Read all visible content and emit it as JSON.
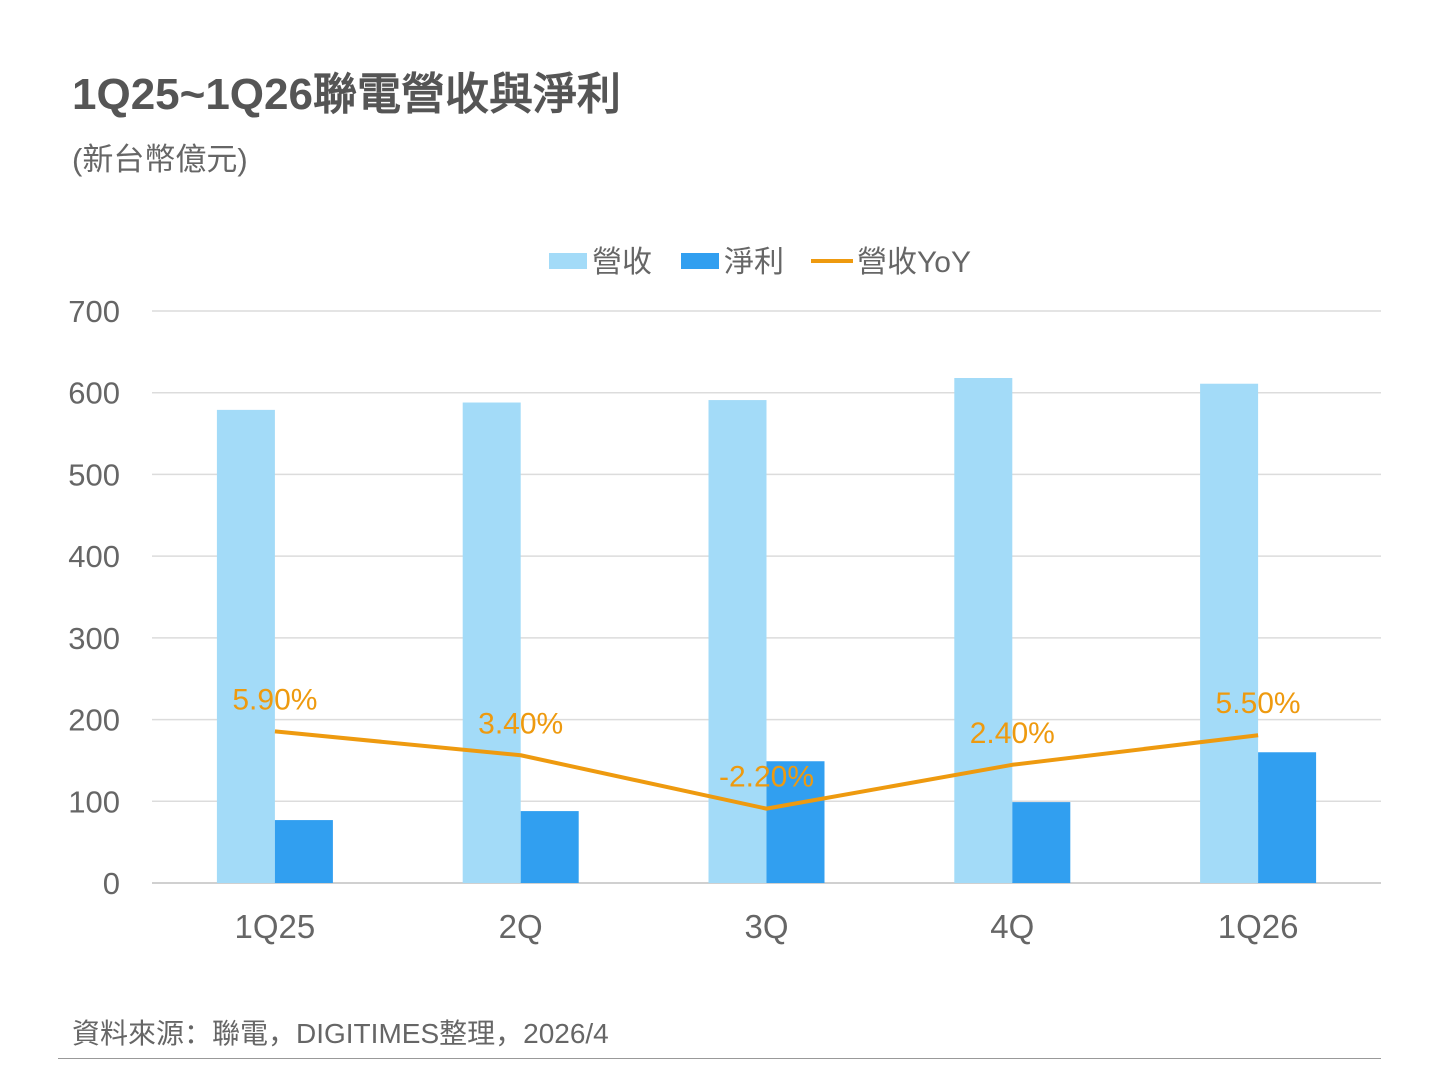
{
  "title": "1Q25~1Q26聯電營收與淨利",
  "subtitle": "(新台幣億元)",
  "source": "資料來源：聯電，DIGITIMES整理，2026/4",
  "chart_data": {
    "type": "bar",
    "title": "1Q25~1Q26聯電營收與淨利",
    "categories": [
      "1Q25",
      "2Q",
      "3Q",
      "4Q",
      "1Q26"
    ],
    "series": [
      {
        "name": "營收",
        "type": "bar",
        "axis": "left",
        "color": "#a3dbf8",
        "values": [
          579,
          588,
          591,
          618,
          611
        ]
      },
      {
        "name": "淨利",
        "type": "bar",
        "axis": "left",
        "color": "#319ff0",
        "values": [
          77,
          88,
          149,
          99,
          160
        ]
      },
      {
        "name": "營收YoY",
        "type": "line",
        "axis": "right-hidden",
        "color": "#ee9a0f",
        "values": [
          5.9,
          3.4,
          -2.2,
          2.4,
          5.5
        ],
        "labels": [
          "5.90%",
          "3.40%",
          "-2.20%",
          "2.40%",
          "5.50%"
        ]
      }
    ],
    "ylim": [
      0,
      700
    ],
    "yticks": [
      0,
      100,
      200,
      300,
      400,
      500,
      600,
      700
    ],
    "y2lim": [
      -10,
      50
    ],
    "grid": true,
    "legend": "top-center"
  }
}
